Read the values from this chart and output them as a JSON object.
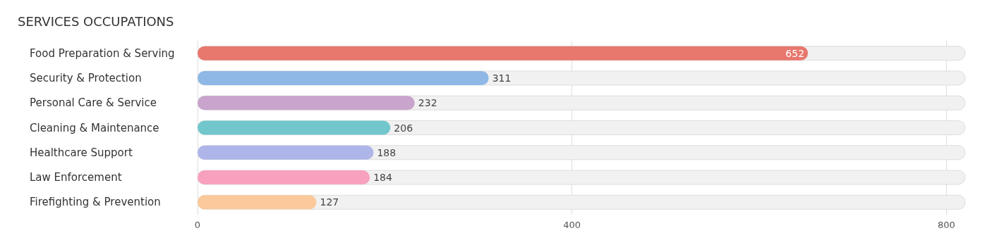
{
  "chart_data": {
    "type": "bar",
    "title": "SERVICES OCCUPATIONS",
    "orientation": "horizontal",
    "categories": [
      "Food Preparation & Serving",
      "Security & Protection",
      "Personal Care & Service",
      "Cleaning & Maintenance",
      "Healthcare Support",
      "Law Enforcement",
      "Firefighting & Prevention"
    ],
    "values": [
      652,
      311,
      232,
      206,
      188,
      184,
      127
    ],
    "colors": [
      "#e8776e",
      "#8fb8e6",
      "#c9a4cc",
      "#72c7cc",
      "#aeb5e8",
      "#f7a1bf",
      "#fbc99a"
    ],
    "xlim": [
      0,
      820
    ],
    "xticks": [
      0,
      400,
      800
    ],
    "grid": "x",
    "data_labels": true
  }
}
